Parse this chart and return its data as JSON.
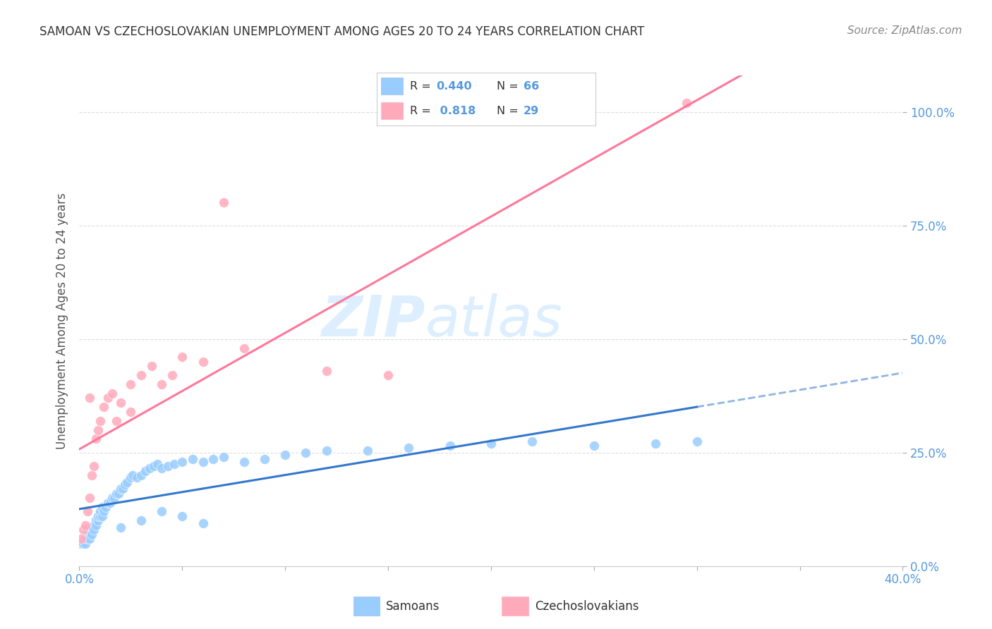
{
  "title": "SAMOAN VS CZECHOSLOVAKIAN UNEMPLOYMENT AMONG AGES 20 TO 24 YEARS CORRELATION CHART",
  "source": "Source: ZipAtlas.com",
  "ylabel": "Unemployment Among Ages 20 to 24 years",
  "xlim": [
    0.0,
    0.4
  ],
  "ylim": [
    0.0,
    1.08
  ],
  "background_color": "#ffffff",
  "grid_color": "#dddddd",
  "samoans_color": "#99ccff",
  "czechoslovakians_color": "#ffaabb",
  "samoans_line_color": "#3377cc",
  "czechoslovakians_line_color": "#ff7799",
  "watermark_zip": "ZIP",
  "watermark_atlas": "atlas",
  "watermark_color": "#ddeeff",
  "tick_color": "#5599dd",
  "samoans_x": [
    0.001,
    0.002,
    0.003,
    0.003,
    0.004,
    0.004,
    0.005,
    0.005,
    0.006,
    0.006,
    0.007,
    0.007,
    0.008,
    0.008,
    0.009,
    0.009,
    0.01,
    0.01,
    0.011,
    0.011,
    0.012,
    0.013,
    0.014,
    0.015,
    0.016,
    0.017,
    0.018,
    0.019,
    0.02,
    0.021,
    0.022,
    0.023,
    0.025,
    0.026,
    0.028,
    0.03,
    0.032,
    0.034,
    0.036,
    0.038,
    0.04,
    0.043,
    0.046,
    0.05,
    0.055,
    0.06,
    0.065,
    0.07,
    0.08,
    0.09,
    0.1,
    0.11,
    0.12,
    0.14,
    0.16,
    0.18,
    0.2,
    0.22,
    0.25,
    0.28,
    0.3,
    0.02,
    0.03,
    0.04,
    0.05,
    0.06
  ],
  "samoans_y": [
    0.05,
    0.05,
    0.06,
    0.05,
    0.06,
    0.08,
    0.07,
    0.06,
    0.08,
    0.07,
    0.09,
    0.08,
    0.1,
    0.09,
    0.1,
    0.11,
    0.11,
    0.12,
    0.11,
    0.13,
    0.12,
    0.13,
    0.14,
    0.14,
    0.15,
    0.15,
    0.16,
    0.16,
    0.17,
    0.17,
    0.18,
    0.185,
    0.195,
    0.2,
    0.195,
    0.2,
    0.21,
    0.215,
    0.22,
    0.225,
    0.215,
    0.22,
    0.225,
    0.23,
    0.235,
    0.23,
    0.235,
    0.24,
    0.23,
    0.235,
    0.245,
    0.25,
    0.255,
    0.255,
    0.26,
    0.265,
    0.27,
    0.275,
    0.265,
    0.27,
    0.275,
    0.085,
    0.1,
    0.12,
    0.11,
    0.095
  ],
  "czechoslovakians_x": [
    0.001,
    0.002,
    0.003,
    0.004,
    0.005,
    0.006,
    0.007,
    0.008,
    0.009,
    0.01,
    0.012,
    0.014,
    0.016,
    0.018,
    0.02,
    0.025,
    0.03,
    0.035,
    0.04,
    0.045,
    0.05,
    0.06,
    0.07,
    0.08,
    0.12,
    0.15,
    0.295,
    0.005,
    0.025
  ],
  "czechoslovakians_y": [
    0.06,
    0.08,
    0.09,
    0.12,
    0.15,
    0.2,
    0.22,
    0.28,
    0.3,
    0.32,
    0.35,
    0.37,
    0.38,
    0.32,
    0.36,
    0.4,
    0.42,
    0.44,
    0.4,
    0.42,
    0.46,
    0.45,
    0.8,
    0.48,
    0.43,
    0.42,
    1.02,
    0.37,
    0.34
  ]
}
